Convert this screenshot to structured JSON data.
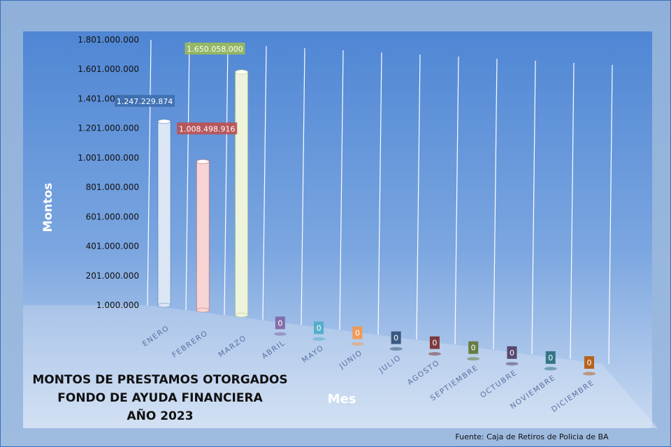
{
  "chart_data": {
    "type": "bar",
    "title": [
      "MONTOS  DE  PRESTAMOS  OTORGADOS",
      "FONDO  DE  AYUDA  FINANCIERA",
      "AÑO   2023"
    ],
    "xlabel": "Mes",
    "ylabel": "Montos",
    "source": "Fuente: Caja de Retiros de Policia de BA",
    "categories": [
      "ENERO",
      "FEBRERO",
      "MARZO",
      "ABRIL",
      "MAYO",
      "JUNIO",
      "JULIO",
      "AGOSTO",
      "SEPTIEMBRE",
      "OCTUBRE",
      "NOVIEMBRE",
      "DICIEMBRE"
    ],
    "values": [
      1247229874,
      1008498916,
      1650058000,
      0,
      0,
      0,
      0,
      0,
      0,
      0,
      0,
      0
    ],
    "value_labels": [
      "1.247.229.874",
      "1.008.498.916",
      "1.650.058.000",
      "0",
      "0",
      "0",
      "0",
      "0",
      "0",
      "0",
      "0",
      "0"
    ],
    "y_ticks": [
      "1.000.000",
      "201.000.000",
      "401.000.000",
      "601.000.000",
      "801.000.000",
      "1.001.000.000",
      "1.201.000.000",
      "1.401.000.000",
      "1.601.000.000",
      "1.801.000.000"
    ],
    "ylim": [
      1000000,
      1801000000
    ],
    "colors": [
      "#3d6fb0",
      "#c0504d",
      "#9bbb59",
      "#8064a2",
      "#4bacc6",
      "#f79646",
      "#2c4d75",
      "#772c2a",
      "#5f7530",
      "#4d3b62",
      "#276a7c",
      "#b65708"
    ],
    "bar_fills": [
      "#dce6f4",
      "#f6d5d4",
      "#eef3dc"
    ],
    "grid": true,
    "legend": "none"
  }
}
